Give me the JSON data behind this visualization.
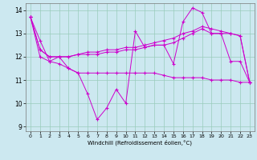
{
  "title": "",
  "xlabel": "Windchill (Refroidissement éolien,°C)",
  "ylabel": "",
  "bg_color": "#cce8f0",
  "line_color": "#cc00cc",
  "grid_color": "#99ccbb",
  "xlim": [
    -0.5,
    23.5
  ],
  "ylim": [
    8.8,
    14.3
  ],
  "yticks": [
    9,
    10,
    11,
    12,
    13,
    14
  ],
  "xticks": [
    0,
    1,
    2,
    3,
    4,
    5,
    6,
    7,
    8,
    9,
    10,
    11,
    12,
    13,
    14,
    15,
    16,
    17,
    18,
    19,
    20,
    21,
    22,
    23
  ],
  "series": [
    [
      13.7,
      12.7,
      11.8,
      11.7,
      11.5,
      11.3,
      10.4,
      9.3,
      9.8,
      10.6,
      10.0,
      13.1,
      12.4,
      12.5,
      12.5,
      11.7,
      13.5,
      14.1,
      13.9,
      13.0,
      13.0,
      11.8,
      11.8,
      10.9
    ],
    [
      13.7,
      12.0,
      11.8,
      12.0,
      11.5,
      11.3,
      11.3,
      11.3,
      11.3,
      11.3,
      11.3,
      11.3,
      11.3,
      11.3,
      11.2,
      11.1,
      11.1,
      11.1,
      11.1,
      11.0,
      11.0,
      11.0,
      10.9,
      10.9
    ],
    [
      13.7,
      12.3,
      12.0,
      12.0,
      12.0,
      12.1,
      12.1,
      12.1,
      12.2,
      12.2,
      12.3,
      12.3,
      12.4,
      12.5,
      12.5,
      12.6,
      12.8,
      13.0,
      13.2,
      13.0,
      13.0,
      13.0,
      12.9,
      10.9
    ],
    [
      13.7,
      12.3,
      12.0,
      12.0,
      12.0,
      12.1,
      12.2,
      12.2,
      12.3,
      12.3,
      12.4,
      12.4,
      12.5,
      12.6,
      12.7,
      12.8,
      13.0,
      13.1,
      13.3,
      13.2,
      13.1,
      13.0,
      12.9,
      10.9
    ]
  ]
}
